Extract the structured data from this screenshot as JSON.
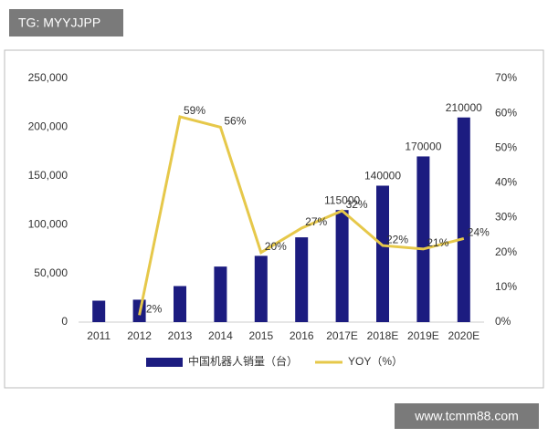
{
  "chart_data": {
    "type": "bar",
    "categories": [
      "2011",
      "2012",
      "2013",
      "2014",
      "2015",
      "2016",
      "2017E",
      "2018E",
      "2019E",
      "2020E"
    ],
    "series": [
      {
        "name": "中国机器人销量（台）",
        "type": "bar",
        "color": "#1c1c80",
        "values": [
          22000,
          23000,
          37000,
          57000,
          68000,
          87000,
          115000,
          140000,
          170000,
          210000
        ],
        "value_labels": [
          null,
          null,
          null,
          null,
          null,
          null,
          "115000",
          "140000",
          "170000",
          "210000"
        ]
      },
      {
        "name": "YOY（%）",
        "type": "line",
        "axis": "y2",
        "color": "#e6c84a",
        "values": [
          null,
          2,
          59,
          56,
          20,
          27,
          32,
          22,
          21,
          24
        ],
        "value_labels": [
          null,
          "2%",
          "59%",
          "56%",
          "20%",
          "27%",
          "32%",
          "22%",
          "21%",
          "24%"
        ]
      }
    ],
    "ylim": [
      0,
      250000
    ],
    "yticks": [
      0,
      {
        "value": 50000,
        "label": "50,000"
      },
      {
        "value": 100000,
        "label": "100,000"
      },
      {
        "value": 150000,
        "label": "150,000"
      },
      {
        "value": 200000,
        "label": "200,000"
      },
      {
        "value": 250000,
        "label": "250,000"
      }
    ],
    "y2lim": [
      0,
      70
    ],
    "y2ticks": [
      {
        "value": 0,
        "label": "0%"
      },
      {
        "value": 10,
        "label": "10%"
      },
      {
        "value": 20,
        "label": "20%"
      },
      {
        "value": 30,
        "label": "30%"
      },
      {
        "value": 40,
        "label": "40%"
      },
      {
        "value": 50,
        "label": "50%"
      },
      {
        "value": 60,
        "label": "60%"
      },
      {
        "value": 70,
        "label": "70%"
      }
    ]
  },
  "watermarks": [
    "TG: MYYJJPP",
    "www.tcmm88.com"
  ]
}
